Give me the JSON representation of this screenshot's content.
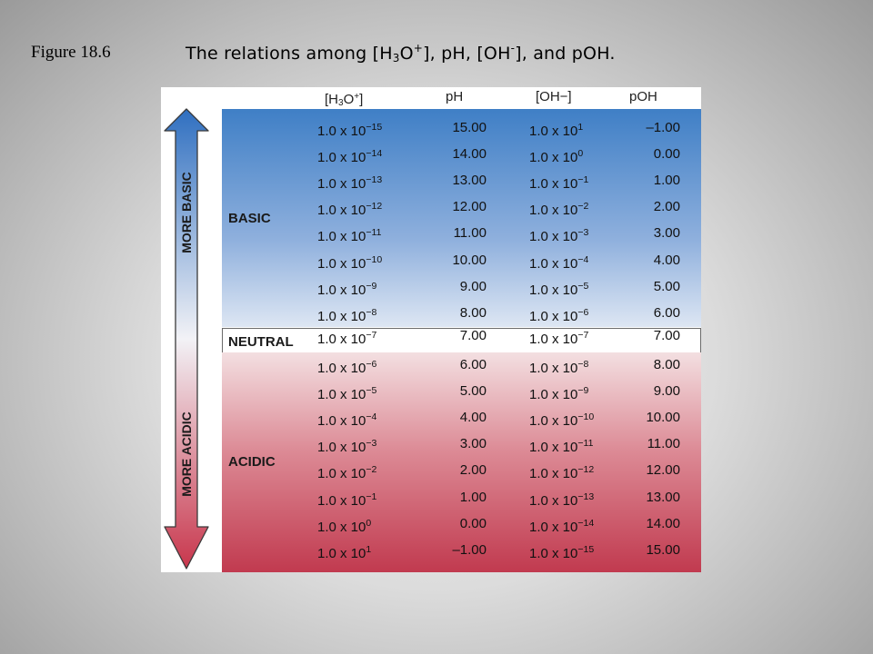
{
  "figure_label": "Figure 18.6",
  "title": {
    "part1": "The relations among [H",
    "sub1": "3",
    "part2": "O",
    "sup1": "+",
    "part3": "], pH, [OH",
    "sup2": "-",
    "part4": "], and pOH."
  },
  "arrows": {
    "up_label": "MORE BASIC",
    "down_label": "MORE ACIDIC"
  },
  "headers": {
    "h3o": {
      "pre": "[H",
      "sub": "3",
      "mid": "O",
      "sup": "+",
      "post": "]"
    },
    "ph": "pH",
    "oh": "[OH−]",
    "poh": "pOH"
  },
  "categories": {
    "basic": "BASIC",
    "neutral": "NEUTRAL",
    "acidic": "ACIDIC"
  },
  "table": {
    "base": "1.0 x 10",
    "rows": [
      {
        "h3o_exp": "−15",
        "ph": "15.00",
        "oh_exp": "1",
        "poh": "–1.00"
      },
      {
        "h3o_exp": "−14",
        "ph": "14.00",
        "oh_exp": "0",
        "poh": "0.00"
      },
      {
        "h3o_exp": "−13",
        "ph": "13.00",
        "oh_exp": "−1",
        "poh": "1.00"
      },
      {
        "h3o_exp": "−12",
        "ph": "12.00",
        "oh_exp": "−2",
        "poh": "2.00"
      },
      {
        "h3o_exp": "−11",
        "ph": "11.00",
        "oh_exp": "−3",
        "poh": "3.00"
      },
      {
        "h3o_exp": "−10",
        "ph": "10.00",
        "oh_exp": "−4",
        "poh": "4.00"
      },
      {
        "h3o_exp": "−9",
        "ph": "9.00",
        "oh_exp": "−5",
        "poh": "5.00"
      },
      {
        "h3o_exp": "−8",
        "ph": "8.00",
        "oh_exp": "−6",
        "poh": "6.00"
      },
      {
        "h3o_exp": "−7",
        "ph": "7.00",
        "oh_exp": "−7",
        "poh": "7.00"
      },
      {
        "h3o_exp": "−6",
        "ph": "6.00",
        "oh_exp": "−8",
        "poh": "8.00"
      },
      {
        "h3o_exp": "−5",
        "ph": "5.00",
        "oh_exp": "−9",
        "poh": "9.00"
      },
      {
        "h3o_exp": "−4",
        "ph": "4.00",
        "oh_exp": "−10",
        "poh": "10.00"
      },
      {
        "h3o_exp": "−3",
        "ph": "3.00",
        "oh_exp": "−11",
        "poh": "11.00"
      },
      {
        "h3o_exp": "−2",
        "ph": "2.00",
        "oh_exp": "−12",
        "poh": "12.00"
      },
      {
        "h3o_exp": "−1",
        "ph": "1.00",
        "oh_exp": "−13",
        "poh": "13.00"
      },
      {
        "h3o_exp": "0",
        "ph": "0.00",
        "oh_exp": "−14",
        "poh": "14.00"
      },
      {
        "h3o_exp": "1",
        "ph": "–1.00",
        "oh_exp": "−15",
        "poh": "15.00"
      }
    ]
  },
  "colors": {
    "basic_dark": "#3f7fc6",
    "basic_light": "#dde6f3",
    "acidic_light": "#f3dfe1",
    "acidic_dark": "#c13a4f",
    "arrow_blue": "#2f6fc0",
    "arrow_red": "#c8364c"
  }
}
